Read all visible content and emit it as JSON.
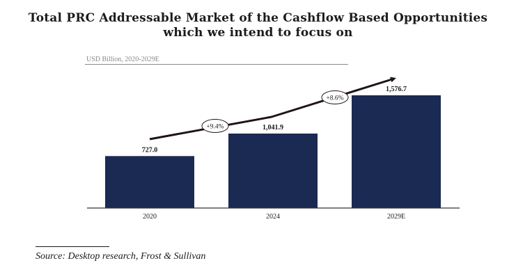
{
  "title": {
    "line1": "Total PRC Addressable Market of the Cashflow Based Opportunities",
    "line2": "which we intend to focus on"
  },
  "unit_label": "USD Billion, 2020-2029E",
  "source": "Source: Desktop research, Frost & Sullivan",
  "colors": {
    "bar": "#1b2a52",
    "arrow": "#1f1414",
    "axis": "#333333"
  },
  "chart_data": {
    "type": "bar",
    "categories": [
      "2020",
      "2024",
      "2029E"
    ],
    "values": [
      727.0,
      1041.9,
      1576.7
    ],
    "value_labels": [
      "727.0",
      "1,041.9",
      "1,576.7"
    ],
    "ylabel": "USD Billion, 2020-2029E",
    "growth_annotations": [
      "+9.4%",
      "+8.6%"
    ],
    "trend": "upward arrow across bars",
    "grid": false,
    "legend": "none"
  }
}
